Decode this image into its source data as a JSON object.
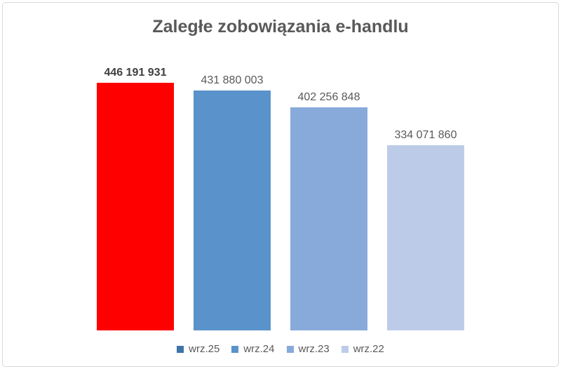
{
  "chart_data": {
    "type": "bar",
    "title": "Zaległe zobowiązania e-handlu",
    "categories": [
      "wrz.25",
      "wrz.24",
      "wrz.23",
      "wrz.22"
    ],
    "values": [
      446191931,
      431880003,
      402256848,
      334071860
    ],
    "value_labels": [
      "446 191 931",
      "431 880 003",
      "402 256 848",
      "334 071 860"
    ],
    "bar_colors": [
      "#FF0000",
      "#5A93CB",
      "#88AADA",
      "#BCCCE8"
    ],
    "highlight_index": 0,
    "legend": [
      {
        "label": "wrz.25",
        "color": "#3F73A9"
      },
      {
        "label": "wrz.24",
        "color": "#5A93CB"
      },
      {
        "label": "wrz.23",
        "color": "#88AADA"
      },
      {
        "label": "wrz.22",
        "color": "#BCCCE8"
      }
    ],
    "xlabel": "",
    "ylabel": "",
    "ylim": [
      0,
      446191931
    ],
    "grid": false,
    "legend_position": "bottom"
  },
  "colors": {
    "title_text": "#595959",
    "label_text": "#595959",
    "label_text_bold": "#3F3F3F",
    "border": "#D9D9D9",
    "background": "#FFFFFF"
  }
}
